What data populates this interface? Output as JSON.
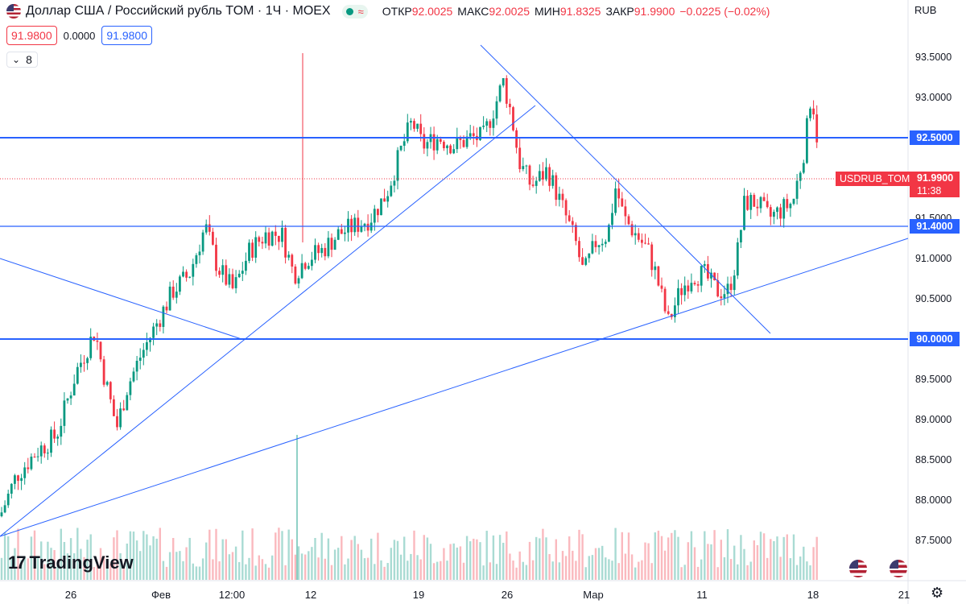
{
  "header": {
    "title": "Доллар США / Российский рубль TOM · 1Ч · MOEX",
    "ohlc": [
      {
        "label": "ОТКР",
        "value": "92.0025"
      },
      {
        "label": "МАКС",
        "value": "92.0025"
      },
      {
        "label": "МИН",
        "value": "91.8325"
      },
      {
        "label": "ЗАКР",
        "value": "91.9900"
      }
    ],
    "change": "−0.0225 (−0.02%)"
  },
  "price_row": {
    "sell": "91.9800",
    "spread": "0.0000",
    "buy": "91.9800"
  },
  "indicator_box": {
    "value": "8"
  },
  "currency": "RUB",
  "price_label": {
    "symbol": "USDRUB_TOM",
    "price": "91.9900",
    "countdown": "11:38"
  },
  "logo": "TradingView",
  "colors": {
    "up": "#089981",
    "down": "#f23645",
    "line": "#2962ff",
    "axis_bg": "#ffffff"
  },
  "icons": {
    "settings": "gear-icon",
    "event": "us-flag-event-icon",
    "status": "market-status-icon"
  },
  "chart_data": {
    "type": "candlestick",
    "symbol": "USDRUB_TOM",
    "timeframe": "1H",
    "ylim": [
      87.1,
      93.8
    ],
    "y_ticks": [
      "93.5000",
      "93.0000",
      "92.5000",
      "92.0000",
      "91.5000",
      "91.0000",
      "90.5000",
      "90.0000",
      "89.5000",
      "89.0000",
      "88.5000",
      "88.0000",
      "87.5000"
    ],
    "x_ticks": [
      "26",
      "Фев",
      "12:00",
      "12",
      "19",
      "26",
      "Мар",
      "11",
      "18",
      "21"
    ],
    "horizontal_levels": [
      {
        "price": "92.5000",
        "value": 92.5
      },
      {
        "price": "91.4000",
        "value": 91.4
      },
      {
        "price": "90.0000",
        "value": 90.0
      }
    ],
    "trend_lines": [
      {
        "from": [
          0,
          91.0
        ],
        "to": [
          300,
          90.0
        ]
      },
      {
        "from": [
          0,
          87.55
        ],
        "to": [
          665,
          92.9
        ]
      },
      {
        "from": [
          0,
          87.55
        ],
        "to": [
          1128,
          91.25
        ]
      },
      {
        "from": [
          597,
          93.65
        ],
        "to": [
          957,
          90.07
        ]
      }
    ],
    "close_path": [
      [
        0,
        87.8
      ],
      [
        20,
        88.3
      ],
      [
        45,
        88.6
      ],
      [
        70,
        88.8
      ],
      [
        95,
        89.6
      ],
      [
        118,
        90.1
      ],
      [
        128,
        89.6
      ],
      [
        145,
        88.9
      ],
      [
        158,
        89.4
      ],
      [
        175,
        89.8
      ],
      [
        195,
        90.2
      ],
      [
        215,
        90.6
      ],
      [
        235,
        90.8
      ],
      [
        255,
        91.4
      ],
      [
        270,
        90.9
      ],
      [
        290,
        90.6
      ],
      [
        310,
        91.1
      ],
      [
        330,
        91.3
      ],
      [
        350,
        91.3
      ],
      [
        365,
        90.8
      ],
      [
        380,
        91.0
      ],
      [
        400,
        91.1
      ],
      [
        420,
        91.3
      ],
      [
        440,
        91.4
      ],
      [
        460,
        91.5
      ],
      [
        480,
        91.8
      ],
      [
        500,
        92.4
      ],
      [
        512,
        92.7
      ],
      [
        525,
        92.4
      ],
      [
        545,
        92.5
      ],
      [
        565,
        92.4
      ],
      [
        585,
        92.5
      ],
      [
        600,
        92.5
      ],
      [
        615,
        92.9
      ],
      [
        625,
        93.2
      ],
      [
        635,
        92.8
      ],
      [
        645,
        92.2
      ],
      [
        660,
        91.9
      ],
      [
        680,
        92.1
      ],
      [
        700,
        91.6
      ],
      [
        715,
        91.2
      ],
      [
        725,
        90.8
      ],
      [
        740,
        91.2
      ],
      [
        755,
        91.3
      ],
      [
        765,
        91.9
      ],
      [
        775,
        91.5
      ],
      [
        790,
        91.3
      ],
      [
        805,
        91.1
      ],
      [
        815,
        90.8
      ],
      [
        830,
        90.2
      ],
      [
        845,
        90.6
      ],
      [
        860,
        90.8
      ],
      [
        875,
        90.8
      ],
      [
        890,
        90.6
      ],
      [
        905,
        90.6
      ],
      [
        915,
        91.0
      ],
      [
        925,
        91.7
      ],
      [
        940,
        91.7
      ],
      [
        955,
        91.5
      ],
      [
        970,
        91.6
      ],
      [
        985,
        91.7
      ],
      [
        1000,
        92.4
      ],
      [
        1008,
        93.1
      ],
      [
        1015,
        92.5
      ],
      [
        1018,
        91.99
      ]
    ]
  }
}
